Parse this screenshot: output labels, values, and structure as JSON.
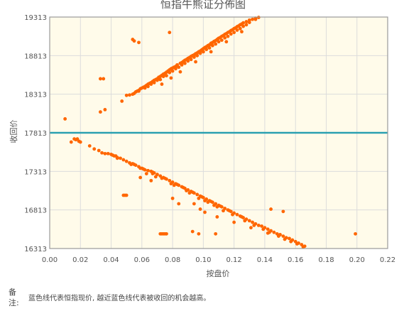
{
  "chart_data": {
    "type": "scatter",
    "title": "恒指牛熊证分佈图",
    "xlabel": "按盘价",
    "ylabel": "收回价",
    "xlim": [
      0,
      0.22
    ],
    "ylim": [
      16313,
      19313
    ],
    "x_ticks": [
      "0.00",
      "0.02",
      "0.04",
      "0.06",
      "0.08",
      "0.10",
      "0.12",
      "0.14",
      "0.16",
      "0.18",
      "0.20",
      "0.22"
    ],
    "y_ticks": [
      "16313",
      "16813",
      "17313",
      "17813",
      "18313",
      "18813",
      "19313"
    ],
    "grid": true,
    "reference_line": {
      "y": 17813,
      "color": "#2aa0b0"
    },
    "point_color": "#ff6600",
    "plot_background": "#fffbea",
    "bull_points": [
      [
        0.047,
        18223
      ],
      [
        0.05,
        18298
      ],
      [
        0.052,
        18303
      ],
      [
        0.054,
        18313
      ],
      [
        0.055,
        18323
      ],
      [
        0.056,
        18343
      ],
      [
        0.057,
        18353
      ],
      [
        0.058,
        18363
      ],
      [
        0.059,
        18383
      ],
      [
        0.06,
        18393
      ],
      [
        0.061,
        18403
      ],
      [
        0.062,
        18413
      ],
      [
        0.063,
        18428
      ],
      [
        0.064,
        18443
      ],
      [
        0.065,
        18453
      ],
      [
        0.066,
        18463
      ],
      [
        0.067,
        18478
      ],
      [
        0.068,
        18493
      ],
      [
        0.069,
        18503
      ],
      [
        0.07,
        18513
      ],
      [
        0.071,
        18533
      ],
      [
        0.072,
        18543
      ],
      [
        0.073,
        18558
      ],
      [
        0.074,
        18573
      ],
      [
        0.075,
        18583
      ],
      [
        0.076,
        18598
      ],
      [
        0.077,
        18613
      ],
      [
        0.078,
        18628
      ],
      [
        0.079,
        18643
      ],
      [
        0.08,
        18653
      ],
      [
        0.081,
        18663
      ],
      [
        0.082,
        18673
      ],
      [
        0.083,
        18693
      ],
      [
        0.085,
        18713
      ],
      [
        0.086,
        18723
      ],
      [
        0.087,
        18738
      ],
      [
        0.088,
        18753
      ],
      [
        0.089,
        18763
      ],
      [
        0.09,
        18778
      ],
      [
        0.091,
        18788
      ],
      [
        0.092,
        18803
      ],
      [
        0.093,
        18813
      ],
      [
        0.094,
        18823
      ],
      [
        0.095,
        18838
      ],
      [
        0.096,
        18848
      ],
      [
        0.097,
        18863
      ],
      [
        0.098,
        18873
      ],
      [
        0.099,
        18888
      ],
      [
        0.1,
        18903
      ],
      [
        0.101,
        18918
      ],
      [
        0.102,
        18928
      ],
      [
        0.103,
        18943
      ],
      [
        0.104,
        18953
      ],
      [
        0.105,
        18973
      ],
      [
        0.106,
        18983
      ],
      [
        0.107,
        18998
      ],
      [
        0.108,
        19008
      ],
      [
        0.109,
        19023
      ],
      [
        0.11,
        19038
      ],
      [
        0.111,
        19048
      ],
      [
        0.112,
        19063
      ],
      [
        0.113,
        19073
      ],
      [
        0.114,
        19088
      ],
      [
        0.115,
        19098
      ],
      [
        0.116,
        19113
      ],
      [
        0.117,
        19123
      ],
      [
        0.118,
        19138
      ],
      [
        0.119,
        19148
      ],
      [
        0.12,
        19163
      ],
      [
        0.121,
        19173
      ],
      [
        0.122,
        19188
      ],
      [
        0.123,
        19198
      ],
      [
        0.124,
        19213
      ],
      [
        0.125,
        19223
      ],
      [
        0.126,
        19238
      ],
      [
        0.128,
        19253
      ],
      [
        0.13,
        19273
      ],
      [
        0.132,
        19283
      ],
      [
        0.134,
        19298
      ],
      [
        0.136,
        19308
      ],
      [
        0.064,
        18413
      ],
      [
        0.068,
        18463
      ],
      [
        0.072,
        18503
      ],
      [
        0.076,
        18553
      ],
      [
        0.08,
        18613
      ],
      [
        0.084,
        18663
      ],
      [
        0.088,
        18713
      ],
      [
        0.092,
        18763
      ],
      [
        0.096,
        18813
      ],
      [
        0.1,
        18863
      ],
      [
        0.104,
        18913
      ],
      [
        0.108,
        18963
      ],
      [
        0.112,
        19013
      ],
      [
        0.116,
        19063
      ],
      [
        0.12,
        19113
      ],
      [
        0.124,
        19163
      ],
      [
        0.128,
        19213
      ],
      [
        0.058,
        18353
      ],
      [
        0.062,
        18393
      ],
      [
        0.066,
        18443
      ],
      [
        0.07,
        18493
      ],
      [
        0.074,
        18543
      ],
      [
        0.078,
        18593
      ],
      [
        0.082,
        18643
      ],
      [
        0.086,
        18693
      ],
      [
        0.09,
        18743
      ],
      [
        0.094,
        18793
      ],
      [
        0.098,
        18843
      ],
      [
        0.102,
        18893
      ],
      [
        0.106,
        18943
      ],
      [
        0.11,
        18993
      ],
      [
        0.114,
        19043
      ],
      [
        0.118,
        19093
      ],
      [
        0.122,
        19143
      ],
      [
        0.126,
        19193
      ],
      [
        0.13,
        19243
      ],
      [
        0.134,
        19283
      ],
      [
        0.073,
        18443
      ],
      [
        0.079,
        18523
      ],
      [
        0.085,
        18603
      ],
      [
        0.095,
        18733
      ],
      [
        0.105,
        18863
      ],
      [
        0.115,
        18993
      ],
      [
        0.125,
        19123
      ],
      [
        0.054,
        19023
      ],
      [
        0.055,
        19003
      ],
      [
        0.058,
        18983
      ],
      [
        0.078,
        19113
      ],
      [
        0.033,
        18513
      ],
      [
        0.035,
        18513
      ],
      [
        0.033,
        18083
      ],
      [
        0.036,
        18113
      ],
      [
        0.01,
        17993
      ]
    ],
    "bear_points": [
      [
        0.014,
        17693
      ],
      [
        0.016,
        17733
      ],
      [
        0.017,
        17723
      ],
      [
        0.018,
        17733
      ],
      [
        0.019,
        17703
      ],
      [
        0.02,
        17693
      ],
      [
        0.026,
        17643
      ],
      [
        0.029,
        17603
      ],
      [
        0.032,
        17583
      ],
      [
        0.034,
        17553
      ],
      [
        0.036,
        17543
      ],
      [
        0.038,
        17543
      ],
      [
        0.04,
        17533
      ],
      [
        0.041,
        17523
      ],
      [
        0.042,
        17513
      ],
      [
        0.043,
        17513
      ],
      [
        0.044,
        17493
      ],
      [
        0.046,
        17483
      ],
      [
        0.048,
        17463
      ],
      [
        0.05,
        17443
      ],
      [
        0.052,
        17423
      ],
      [
        0.054,
        17413
      ],
      [
        0.055,
        17403
      ],
      [
        0.056,
        17393
      ],
      [
        0.058,
        17373
      ],
      [
        0.06,
        17353
      ],
      [
        0.061,
        17343
      ],
      [
        0.062,
        17333
      ],
      [
        0.064,
        17323
      ],
      [
        0.066,
        17313
      ],
      [
        0.067,
        17303
      ],
      [
        0.068,
        17293
      ],
      [
        0.07,
        17273
      ],
      [
        0.072,
        17253
      ],
      [
        0.074,
        17233
      ],
      [
        0.075,
        17223
      ],
      [
        0.076,
        17213
      ],
      [
        0.078,
        17193
      ],
      [
        0.08,
        17173
      ],
      [
        0.082,
        17153
      ],
      [
        0.083,
        17143
      ],
      [
        0.084,
        17133
      ],
      [
        0.086,
        17113
      ],
      [
        0.087,
        17103
      ],
      [
        0.088,
        17093
      ],
      [
        0.09,
        17073
      ],
      [
        0.092,
        17053
      ],
      [
        0.093,
        17043
      ],
      [
        0.094,
        17033
      ],
      [
        0.096,
        17013
      ],
      [
        0.098,
        16993
      ],
      [
        0.099,
        16983
      ],
      [
        0.1,
        16973
      ],
      [
        0.102,
        16953
      ],
      [
        0.104,
        16933
      ],
      [
        0.105,
        16923
      ],
      [
        0.106,
        16913
      ],
      [
        0.108,
        16893
      ],
      [
        0.11,
        16873
      ],
      [
        0.111,
        16863
      ],
      [
        0.112,
        16853
      ],
      [
        0.114,
        16833
      ],
      [
        0.116,
        16813
      ],
      [
        0.117,
        16803
      ],
      [
        0.118,
        16793
      ],
      [
        0.12,
        16773
      ],
      [
        0.122,
        16753
      ],
      [
        0.124,
        16733
      ],
      [
        0.125,
        16723
      ],
      [
        0.126,
        16713
      ],
      [
        0.128,
        16693
      ],
      [
        0.13,
        16673
      ],
      [
        0.132,
        16653
      ],
      [
        0.134,
        16633
      ],
      [
        0.136,
        16613
      ],
      [
        0.138,
        16603
      ],
      [
        0.14,
        16583
      ],
      [
        0.142,
        16563
      ],
      [
        0.144,
        16543
      ],
      [
        0.146,
        16523
      ],
      [
        0.148,
        16503
      ],
      [
        0.15,
        16493
      ],
      [
        0.152,
        16473
      ],
      [
        0.154,
        16453
      ],
      [
        0.156,
        16443
      ],
      [
        0.158,
        16423
      ],
      [
        0.16,
        16403
      ],
      [
        0.162,
        16383
      ],
      [
        0.164,
        16363
      ],
      [
        0.166,
        16343
      ],
      [
        0.063,
        17283
      ],
      [
        0.069,
        17243
      ],
      [
        0.079,
        17153
      ],
      [
        0.089,
        17063
      ],
      [
        0.097,
        16963
      ],
      [
        0.103,
        16913
      ],
      [
        0.109,
        16853
      ],
      [
        0.113,
        16803
      ],
      [
        0.119,
        16753
      ],
      [
        0.127,
        16673
      ],
      [
        0.133,
        16613
      ],
      [
        0.139,
        16563
      ],
      [
        0.143,
        16523
      ],
      [
        0.149,
        16473
      ],
      [
        0.153,
        16433
      ],
      [
        0.157,
        16403
      ],
      [
        0.161,
        16373
      ],
      [
        0.165,
        16333
      ],
      [
        0.044,
        17483
      ],
      [
        0.053,
        17403
      ],
      [
        0.059,
        17353
      ],
      [
        0.067,
        17283
      ],
      [
        0.073,
        17223
      ],
      [
        0.081,
        17133
      ],
      [
        0.091,
        17033
      ],
      [
        0.101,
        16933
      ],
      [
        0.107,
        16873
      ],
      [
        0.048,
        17003
      ],
      [
        0.049,
        17003
      ],
      [
        0.05,
        17003
      ],
      [
        0.072,
        16503
      ],
      [
        0.073,
        16503
      ],
      [
        0.074,
        16503
      ],
      [
        0.075,
        16503
      ],
      [
        0.076,
        16503
      ],
      [
        0.093,
        16533
      ],
      [
        0.097,
        16503
      ],
      [
        0.108,
        16503
      ],
      [
        0.109,
        16723
      ],
      [
        0.101,
        16783
      ],
      [
        0.084,
        16893
      ],
      [
        0.08,
        16963
      ],
      [
        0.094,
        16893
      ],
      [
        0.098,
        16823
      ],
      [
        0.144,
        16823
      ],
      [
        0.152,
        16793
      ],
      [
        0.12,
        16653
      ],
      [
        0.131,
        16583
      ],
      [
        0.142,
        16513
      ],
      [
        0.199,
        16503
      ],
      [
        0.059,
        17233
      ],
      [
        0.066,
        17193
      ]
    ]
  },
  "note": {
    "label": "备注:",
    "text": "蓝色线代表恒指现价, 越近蓝色线代表被收回的机会越高。"
  }
}
